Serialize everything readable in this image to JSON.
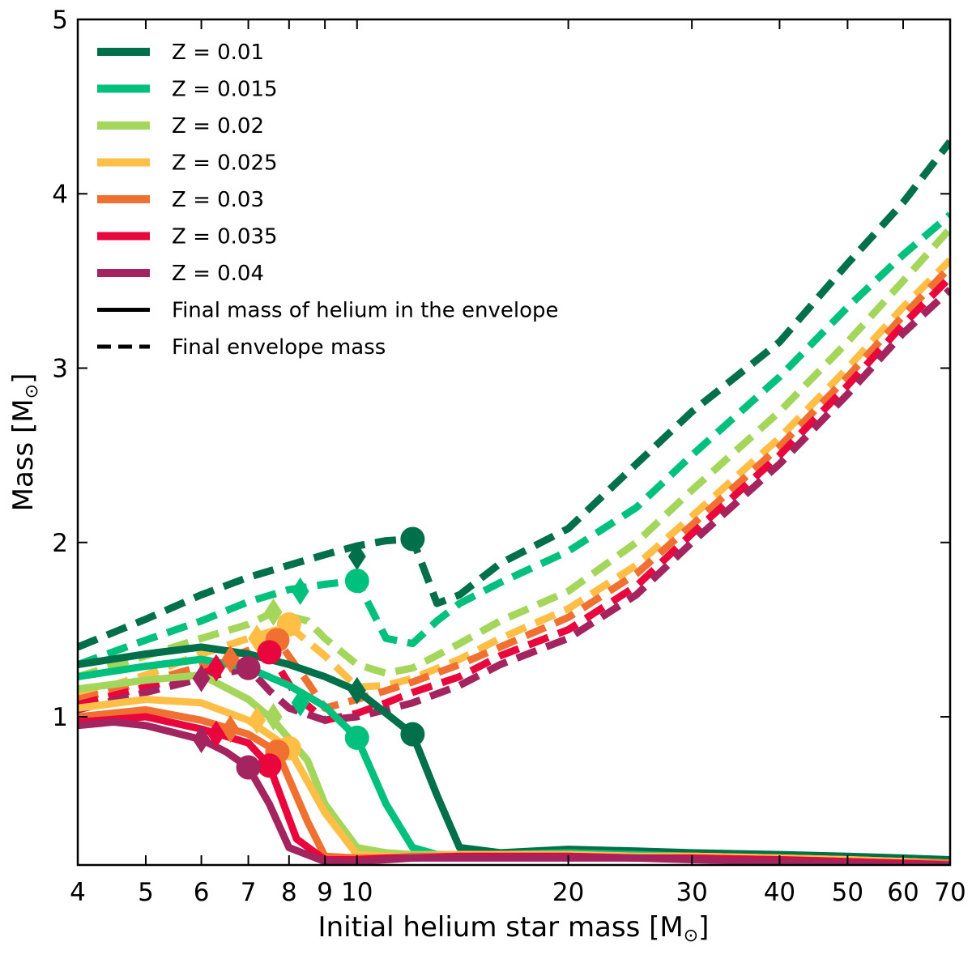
{
  "chart_data": {
    "type": "line",
    "xscale": "log",
    "xlabel": "Initial helium star mass [M",
    "ylabel": "Mass [M",
    "xlim": [
      4,
      70
    ],
    "ylim": [
      0.15,
      5
    ],
    "xticks": [
      {
        "v": 4,
        "label": "4"
      },
      {
        "v": 5,
        "label": "5"
      },
      {
        "v": 6,
        "label": "6"
      },
      {
        "v": 7,
        "label": "7"
      },
      {
        "v": 8,
        "label": "8"
      },
      {
        "v": 9,
        "label": "9"
      },
      {
        "v": 10,
        "label": "10"
      },
      {
        "v": 20,
        "label": "20"
      },
      {
        "v": 30,
        "label": "30"
      },
      {
        "v": 40,
        "label": "40"
      },
      {
        "v": 50,
        "label": "50"
      },
      {
        "v": 60,
        "label": "60"
      },
      {
        "v": 70,
        "label": "70"
      }
    ],
    "yticks": [
      {
        "v": 1,
        "label": "1"
      },
      {
        "v": 2,
        "label": "2"
      },
      {
        "v": 3,
        "label": "3"
      },
      {
        "v": 4,
        "label": "4"
      },
      {
        "v": 5,
        "label": "5"
      }
    ],
    "legend": {
      "placement": "top-left",
      "solid_label": "Final mass of helium in the envelope",
      "dashed_label": "Final envelope mass"
    },
    "series": [
      {
        "name": "Z = 0.01",
        "color": "#00704a",
        "helium": {
          "x": [
            4,
            5,
            6,
            7,
            8,
            9,
            10,
            11,
            12,
            13,
            14,
            16,
            20,
            25,
            30,
            40,
            50,
            60,
            70
          ],
          "y": [
            1.3,
            1.36,
            1.4,
            1.36,
            1.3,
            1.23,
            1.15,
            1.02,
            0.9,
            0.55,
            0.25,
            0.22,
            0.24,
            0.23,
            0.22,
            0.21,
            0.2,
            0.19,
            0.18
          ]
        },
        "envelope": {
          "x": [
            4,
            5,
            6,
            7,
            8,
            9,
            10,
            11,
            12,
            13,
            14,
            16,
            20,
            25,
            30,
            40,
            50,
            60,
            70
          ],
          "y": [
            1.4,
            1.56,
            1.7,
            1.8,
            1.87,
            1.93,
            1.98,
            2.01,
            2.02,
            1.65,
            1.7,
            1.88,
            2.08,
            2.45,
            2.75,
            3.15,
            3.6,
            3.95,
            4.3
          ]
        },
        "markers": [
          {
            "shape": "diamond",
            "x": 10,
            "y": 1.15
          },
          {
            "shape": "circle",
            "x": 12,
            "y": 0.9
          },
          {
            "shape": "diamond",
            "x": 10,
            "y": 1.92
          },
          {
            "shape": "circle",
            "x": 12,
            "y": 2.02
          }
        ]
      },
      {
        "name": "Z = 0.015",
        "color": "#00c07e",
        "helium": {
          "x": [
            4,
            5,
            6,
            7,
            8,
            9,
            10,
            11,
            12,
            13,
            14,
            16,
            20,
            25,
            30,
            40,
            50,
            60,
            70
          ],
          "y": [
            1.23,
            1.29,
            1.33,
            1.28,
            1.18,
            1.06,
            0.88,
            0.5,
            0.25,
            0.21,
            0.21,
            0.21,
            0.22,
            0.21,
            0.2,
            0.19,
            0.18,
            0.17,
            0.16
          ]
        },
        "envelope": {
          "x": [
            4,
            5,
            6,
            7,
            8,
            9,
            10,
            11,
            12,
            13,
            14,
            16,
            20,
            25,
            30,
            40,
            50,
            60,
            70
          ],
          "y": [
            1.3,
            1.44,
            1.55,
            1.66,
            1.73,
            1.76,
            1.78,
            1.45,
            1.42,
            1.55,
            1.65,
            1.77,
            1.95,
            2.2,
            2.5,
            2.95,
            3.35,
            3.65,
            3.88
          ]
        },
        "markers": [
          {
            "shape": "diamond",
            "x": 8.3,
            "y": 1.08
          },
          {
            "shape": "circle",
            "x": 10,
            "y": 0.88
          },
          {
            "shape": "diamond",
            "x": 8.3,
            "y": 1.72
          },
          {
            "shape": "circle",
            "x": 10,
            "y": 1.78
          }
        ]
      },
      {
        "name": "Z = 0.02",
        "color": "#a3d65a",
        "helium": {
          "x": [
            4,
            5,
            6,
            7,
            7.6,
            8.5,
            9,
            10,
            11,
            12,
            14,
            16,
            20,
            25,
            30,
            40,
            50,
            60,
            70
          ],
          "y": [
            1.16,
            1.21,
            1.24,
            1.1,
            0.98,
            0.75,
            0.5,
            0.25,
            0.22,
            0.21,
            0.21,
            0.21,
            0.21,
            0.2,
            0.2,
            0.19,
            0.18,
            0.17,
            0.16
          ]
        },
        "envelope": {
          "x": [
            4,
            5,
            6,
            7,
            7.6,
            8.5,
            9,
            10,
            11,
            12,
            14,
            16,
            20,
            25,
            30,
            40,
            50,
            60,
            70
          ],
          "y": [
            1.23,
            1.35,
            1.45,
            1.53,
            1.6,
            1.55,
            1.45,
            1.3,
            1.25,
            1.28,
            1.42,
            1.55,
            1.72,
            2.0,
            2.3,
            2.75,
            3.15,
            3.5,
            3.8
          ]
        },
        "markers": [
          {
            "shape": "diamond",
            "x": 7.6,
            "y": 1.0
          },
          {
            "shape": "diamond",
            "x": 7.6,
            "y": 1.6
          }
        ]
      },
      {
        "name": "Z = 0.025",
        "color": "#ffbf47",
        "helium": {
          "x": [
            4,
            5,
            6,
            7,
            8,
            9,
            10,
            11,
            12,
            14,
            16,
            20,
            25,
            30,
            40,
            50,
            60,
            70
          ],
          "y": [
            1.05,
            1.1,
            1.08,
            0.98,
            0.82,
            0.45,
            0.21,
            0.2,
            0.2,
            0.21,
            0.21,
            0.21,
            0.2,
            0.2,
            0.19,
            0.18,
            0.17,
            0.16
          ]
        },
        "envelope": {
          "x": [
            4,
            5,
            6,
            7,
            8,
            9,
            10,
            11,
            12,
            14,
            16,
            20,
            25,
            30,
            40,
            50,
            60,
            70
          ],
          "y": [
            1.12,
            1.24,
            1.36,
            1.45,
            1.52,
            1.35,
            1.17,
            1.18,
            1.22,
            1.33,
            1.45,
            1.62,
            1.87,
            2.15,
            2.6,
            3.0,
            3.35,
            3.62
          ]
        },
        "markers": [
          {
            "shape": "diamond",
            "x": 7.2,
            "y": 0.98
          },
          {
            "shape": "circle",
            "x": 8,
            "y": 0.82
          },
          {
            "shape": "diamond",
            "x": 7.2,
            "y": 1.45
          },
          {
            "shape": "circle",
            "x": 8,
            "y": 1.53
          }
        ]
      },
      {
        "name": "Z = 0.03",
        "color": "#f07032",
        "helium": {
          "x": [
            4,
            5,
            6,
            7,
            7.7,
            8.5,
            9,
            10,
            11,
            12,
            14,
            16,
            20,
            25,
            30,
            40,
            50,
            60,
            70
          ],
          "y": [
            1.0,
            1.04,
            0.98,
            0.9,
            0.8,
            0.4,
            0.2,
            0.19,
            0.19,
            0.2,
            0.2,
            0.2,
            0.2,
            0.19,
            0.19,
            0.18,
            0.17,
            0.16,
            0.16
          ]
        },
        "envelope": {
          "x": [
            4,
            5,
            6,
            7,
            7.7,
            8.5,
            9,
            10,
            11,
            12,
            14,
            16,
            20,
            25,
            30,
            40,
            50,
            60,
            70
          ],
          "y": [
            1.1,
            1.2,
            1.29,
            1.38,
            1.44,
            1.2,
            1.05,
            1.1,
            1.15,
            1.2,
            1.3,
            1.4,
            1.57,
            1.82,
            2.1,
            2.55,
            2.95,
            3.3,
            3.58
          ]
        },
        "markers": [
          {
            "shape": "diamond",
            "x": 6.6,
            "y": 0.93
          },
          {
            "shape": "circle",
            "x": 7.7,
            "y": 0.8
          },
          {
            "shape": "diamond",
            "x": 6.6,
            "y": 1.33
          },
          {
            "shape": "circle",
            "x": 7.7,
            "y": 1.44
          }
        ]
      },
      {
        "name": "Z = 0.035",
        "color": "#e8063c",
        "helium": {
          "x": [
            4,
            5,
            6,
            7,
            7.5,
            8.2,
            9,
            10,
            11,
            12,
            14,
            16,
            20,
            25,
            30,
            40,
            50,
            60,
            70
          ],
          "y": [
            0.97,
            1.0,
            0.93,
            0.85,
            0.72,
            0.3,
            0.18,
            0.18,
            0.19,
            0.19,
            0.2,
            0.2,
            0.2,
            0.19,
            0.19,
            0.18,
            0.17,
            0.16,
            0.15
          ]
        },
        "envelope": {
          "x": [
            4,
            5,
            6,
            7,
            7.5,
            8.2,
            9,
            10,
            11,
            12,
            14,
            16,
            20,
            25,
            30,
            40,
            50,
            60,
            70
          ],
          "y": [
            1.07,
            1.17,
            1.25,
            1.32,
            1.37,
            1.12,
            0.98,
            1.02,
            1.08,
            1.14,
            1.23,
            1.35,
            1.5,
            1.75,
            2.05,
            2.5,
            2.9,
            3.25,
            3.52
          ]
        },
        "markers": [
          {
            "shape": "diamond",
            "x": 6.3,
            "y": 0.9
          },
          {
            "shape": "circle",
            "x": 7.5,
            "y": 0.72
          },
          {
            "shape": "diamond",
            "x": 6.3,
            "y": 1.28
          },
          {
            "shape": "circle",
            "x": 7.5,
            "y": 1.37
          }
        ]
      },
      {
        "name": "Z = 0.04",
        "color": "#a3245f",
        "helium": {
          "x": [
            4,
            4.5,
            5,
            6,
            6.5,
            7,
            7.5,
            8,
            9,
            10,
            11,
            12,
            14,
            16,
            20,
            25,
            30,
            40,
            50,
            60,
            70
          ],
          "y": [
            0.95,
            0.97,
            0.95,
            0.87,
            0.8,
            0.71,
            0.5,
            0.25,
            0.17,
            0.17,
            0.18,
            0.19,
            0.19,
            0.19,
            0.19,
            0.19,
            0.18,
            0.17,
            0.16,
            0.15,
            0.15
          ]
        },
        "envelope": {
          "x": [
            4,
            5,
            6,
            7,
            7.5,
            8,
            9,
            10,
            11,
            12,
            14,
            16,
            20,
            25,
            30,
            40,
            50,
            60,
            70
          ],
          "y": [
            1.04,
            1.14,
            1.22,
            1.28,
            1.15,
            1.05,
            0.98,
            1.0,
            1.04,
            1.08,
            1.18,
            1.3,
            1.45,
            1.7,
            2.0,
            2.45,
            2.85,
            3.2,
            3.45
          ]
        },
        "markers": [
          {
            "shape": "diamond",
            "x": 6,
            "y": 0.87
          },
          {
            "shape": "circle",
            "x": 7,
            "y": 0.71
          },
          {
            "shape": "diamond",
            "x": 6,
            "y": 1.22
          },
          {
            "shape": "circle",
            "x": 7,
            "y": 1.28
          }
        ]
      }
    ]
  }
}
